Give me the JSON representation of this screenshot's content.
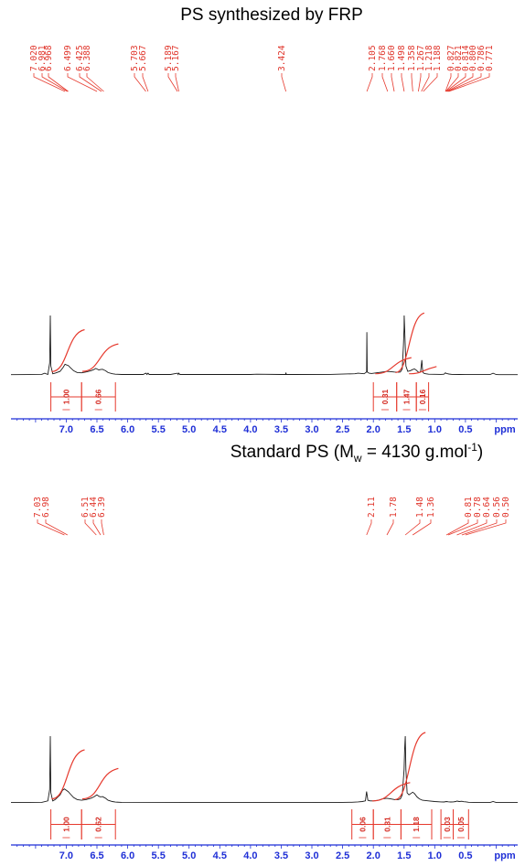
{
  "chart_data": [
    {
      "type": "line",
      "title": "PS synthesized by FRP",
      "xlabel": "ppm",
      "xlim": [
        7.9,
        -0.35
      ],
      "x_ticks": [
        "7.0",
        "6.5",
        "6.0",
        "5.5",
        "5.0",
        "4.5",
        "4.0",
        "3.5",
        "3.0",
        "2.5",
        "2.0",
        "1.5",
        "1.0",
        "0.5"
      ],
      "peak_labels": [
        "7.020",
        "6.981",
        "6.968",
        "6.499",
        "6.425",
        "6.388",
        "5.703",
        "5.667",
        "5.189",
        "5.167",
        "3.424",
        "2.105",
        "1.768",
        "1.660",
        "1.498",
        "1.358",
        "1.267",
        "1.218",
        "1.188",
        "0.827",
        "0.821",
        "0.814",
        "0.800",
        "0.786",
        "0.771"
      ],
      "integrals": [
        {
          "from": 7.25,
          "to": 6.75,
          "value": "1.00"
        },
        {
          "from": 6.75,
          "to": 6.2,
          "value": "0.66"
        },
        {
          "from": 2.0,
          "to": 1.62,
          "value": "0.31"
        },
        {
          "from": 1.62,
          "to": 1.3,
          "value": "1.47"
        },
        {
          "from": 1.3,
          "to": 1.1,
          "value": "0.16"
        }
      ],
      "spectrum": {
        "x": [
          7.9,
          7.6,
          7.4,
          7.35,
          7.3,
          7.27,
          7.26,
          7.25,
          7.22,
          7.18,
          7.1,
          7.05,
          7.02,
          7.0,
          6.97,
          6.93,
          6.88,
          6.82,
          6.75,
          6.68,
          6.6,
          6.55,
          6.52,
          6.5,
          6.47,
          6.44,
          6.41,
          6.39,
          6.36,
          6.32,
          6.25,
          6.2,
          6.1,
          5.75,
          5.7,
          5.685,
          5.667,
          5.65,
          5.3,
          5.19,
          5.178,
          5.167,
          5.15,
          4.5,
          4.0,
          3.9,
          3.5,
          3.43,
          3.424,
          3.418,
          3.3,
          2.7,
          2.3,
          2.25,
          2.15,
          2.11,
          2.105,
          2.1,
          2.07,
          2.03,
          1.95,
          1.85,
          1.78,
          1.72,
          1.66,
          1.6,
          1.56,
          1.53,
          1.51,
          1.5,
          1.498,
          1.49,
          1.47,
          1.44,
          1.4,
          1.36,
          1.33,
          1.3,
          1.27,
          1.25,
          1.23,
          1.21,
          1.2,
          1.19,
          1.18,
          1.15,
          1.1,
          0.9,
          0.85,
          0.827,
          0.81,
          0.79,
          0.77,
          0.72,
          0.6,
          0.4,
          0.1,
          0.05,
          0.0,
          -0.05,
          -0.35
        ],
        "y": [
          0.005,
          0.006,
          0.01,
          0.03,
          0.008,
          0.2,
          1.0,
          0.15,
          0.02,
          0.03,
          0.06,
          0.13,
          0.18,
          0.17,
          0.16,
          0.12,
          0.07,
          0.04,
          0.035,
          0.05,
          0.07,
          0.09,
          0.11,
          0.1,
          0.085,
          0.09,
          0.095,
          0.085,
          0.07,
          0.04,
          0.02,
          0.012,
          0.008,
          0.008,
          0.03,
          0.008,
          0.03,
          0.008,
          0.008,
          0.03,
          0.008,
          0.03,
          0.008,
          0.008,
          0.008,
          0.012,
          0.008,
          0.008,
          0.04,
          0.008,
          0.008,
          0.01,
          0.02,
          0.03,
          0.02,
          0.05,
          0.72,
          0.05,
          0.03,
          0.025,
          0.035,
          0.05,
          0.06,
          0.055,
          0.05,
          0.045,
          0.05,
          0.1,
          0.5,
          0.8,
          1.0,
          0.8,
          0.15,
          0.06,
          0.07,
          0.09,
          0.1,
          0.08,
          0.05,
          0.04,
          0.06,
          0.25,
          0.1,
          0.04,
          0.03,
          0.02,
          0.012,
          0.01,
          0.012,
          0.035,
          0.025,
          0.02,
          0.015,
          0.01,
          0.008,
          0.006,
          0.006,
          0.03,
          0.006,
          0.005,
          0.005
        ],
        "integral_curves": [
          {
            "from": 7.12,
            "to": 6.85,
            "y0": 0.055,
            "y1": 0.7
          },
          {
            "from": 6.62,
            "to": 6.3,
            "y0": 0.06,
            "y1": 0.46
          },
          {
            "from": 1.85,
            "to": 1.53,
            "y0": 0.02,
            "y1": 0.23
          },
          {
            "from": 1.52,
            "to": 1.32,
            "y0": 0.04,
            "y1": 0.98
          },
          {
            "from": 1.3,
            "to": 1.12,
            "y0": 0.02,
            "y1": 0.08
          }
        ]
      }
    },
    {
      "type": "line",
      "title": "Standard PS (M",
      "title_sub": "w",
      "title_mid": " = 4130 g.mol",
      "title_sup": "-1",
      "title_end": ")",
      "xlabel": "ppm",
      "xlim": [
        7.9,
        -0.35
      ],
      "x_ticks": [
        "7.0",
        "6.5",
        "6.0",
        "5.5",
        "5.0",
        "4.5",
        "4.0",
        "3.5",
        "3.0",
        "2.5",
        "2.0",
        "1.5",
        "1.0",
        "0.5"
      ],
      "peak_labels": [
        "7.03",
        "6.98",
        "6.51",
        "6.44",
        "6.39",
        "2.11",
        "1.78",
        "1.48",
        "1.36",
        "0.81",
        "0.78",
        "0.64",
        "0.56",
        "0.50"
      ],
      "integrals": [
        {
          "from": 7.25,
          "to": 6.75,
          "value": "1.00"
        },
        {
          "from": 6.75,
          "to": 6.2,
          "value": "0.62"
        },
        {
          "from": 2.35,
          "to": 2.0,
          "value": "0.06"
        },
        {
          "from": 2.0,
          "to": 1.55,
          "value": "0.31"
        },
        {
          "from": 1.55,
          "to": 1.05,
          "value": "1.18"
        },
        {
          "from": 0.9,
          "to": 0.7,
          "value": "0.03"
        },
        {
          "from": 0.7,
          "to": 0.45,
          "value": "0.05"
        }
      ],
      "spectrum": {
        "x": [
          7.9,
          7.6,
          7.4,
          7.3,
          7.27,
          7.26,
          7.25,
          7.22,
          7.18,
          7.1,
          7.06,
          7.03,
          7.0,
          6.97,
          6.93,
          6.88,
          6.82,
          6.75,
          6.68,
          6.6,
          6.55,
          6.52,
          6.5,
          6.47,
          6.44,
          6.41,
          6.39,
          6.36,
          6.32,
          6.25,
          6.2,
          6.1,
          5.0,
          4.0,
          3.0,
          2.5,
          2.35,
          2.25,
          2.18,
          2.13,
          2.11,
          2.09,
          2.05,
          2.0,
          1.92,
          1.85,
          1.78,
          1.72,
          1.65,
          1.6,
          1.56,
          1.53,
          1.5,
          1.49,
          1.48,
          1.47,
          1.45,
          1.42,
          1.39,
          1.36,
          1.33,
          1.29,
          1.25,
          1.2,
          1.1,
          1.0,
          0.9,
          0.85,
          0.81,
          0.78,
          0.74,
          0.7,
          0.66,
          0.64,
          0.6,
          0.56,
          0.53,
          0.5,
          0.45,
          0.3,
          0.1,
          0.05,
          0.0,
          -0.05,
          -0.35
        ],
        "y": [
          0.005,
          0.006,
          0.008,
          0.03,
          0.2,
          1.0,
          0.15,
          0.03,
          0.05,
          0.12,
          0.19,
          0.21,
          0.19,
          0.17,
          0.13,
          0.08,
          0.05,
          0.04,
          0.05,
          0.07,
          0.09,
          0.11,
          0.12,
          0.1,
          0.09,
          0.095,
          0.085,
          0.07,
          0.04,
          0.02,
          0.012,
          0.008,
          0.006,
          0.006,
          0.006,
          0.008,
          0.01,
          0.015,
          0.02,
          0.03,
          0.17,
          0.04,
          0.03,
          0.03,
          0.04,
          0.06,
          0.07,
          0.06,
          0.05,
          0.05,
          0.06,
          0.12,
          0.5,
          0.8,
          1.0,
          0.5,
          0.15,
          0.12,
          0.14,
          0.16,
          0.14,
          0.09,
          0.06,
          0.04,
          0.03,
          0.02,
          0.015,
          0.014,
          0.02,
          0.016,
          0.014,
          0.015,
          0.02,
          0.028,
          0.02,
          0.024,
          0.018,
          0.016,
          0.01,
          0.006,
          0.006,
          0.02,
          0.006,
          0.005,
          0.005
        ],
        "integral_curves": [
          {
            "from": 7.12,
            "to": 6.85,
            "y0": 0.06,
            "y1": 0.74
          },
          {
            "from": 6.62,
            "to": 6.3,
            "y0": 0.06,
            "y1": 0.46
          },
          {
            "from": 1.9,
            "to": 1.55,
            "y0": 0.03,
            "y1": 0.25
          },
          {
            "from": 1.53,
            "to": 1.3,
            "y0": 0.05,
            "y1": 1.0
          }
        ]
      }
    }
  ]
}
